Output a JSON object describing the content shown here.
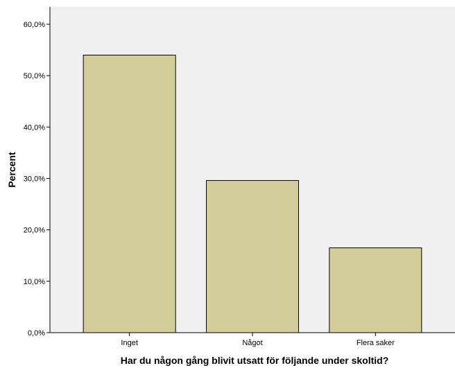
{
  "chart_data": {
    "type": "bar",
    "categories": [
      "Inget",
      "Något",
      "Flera saker"
    ],
    "values": [
      54.0,
      29.6,
      16.5
    ],
    "xlabel": "Har du någon gång blivit utsatt för följande under skoltid?",
    "ylabel": "Percent",
    "ylim": [
      0,
      60
    ],
    "yticks": [
      0,
      10,
      20,
      30,
      40,
      50,
      60
    ],
    "ytick_labels": [
      "0,0%",
      "10,0%",
      "20,0%",
      "30,0%",
      "40,0%",
      "50,0%",
      "60,0%"
    ],
    "grid": false,
    "colors": {
      "plot_background": "#f0f0f0",
      "bar_fill": "#d3ce99",
      "bar_stroke": "#000000"
    }
  }
}
